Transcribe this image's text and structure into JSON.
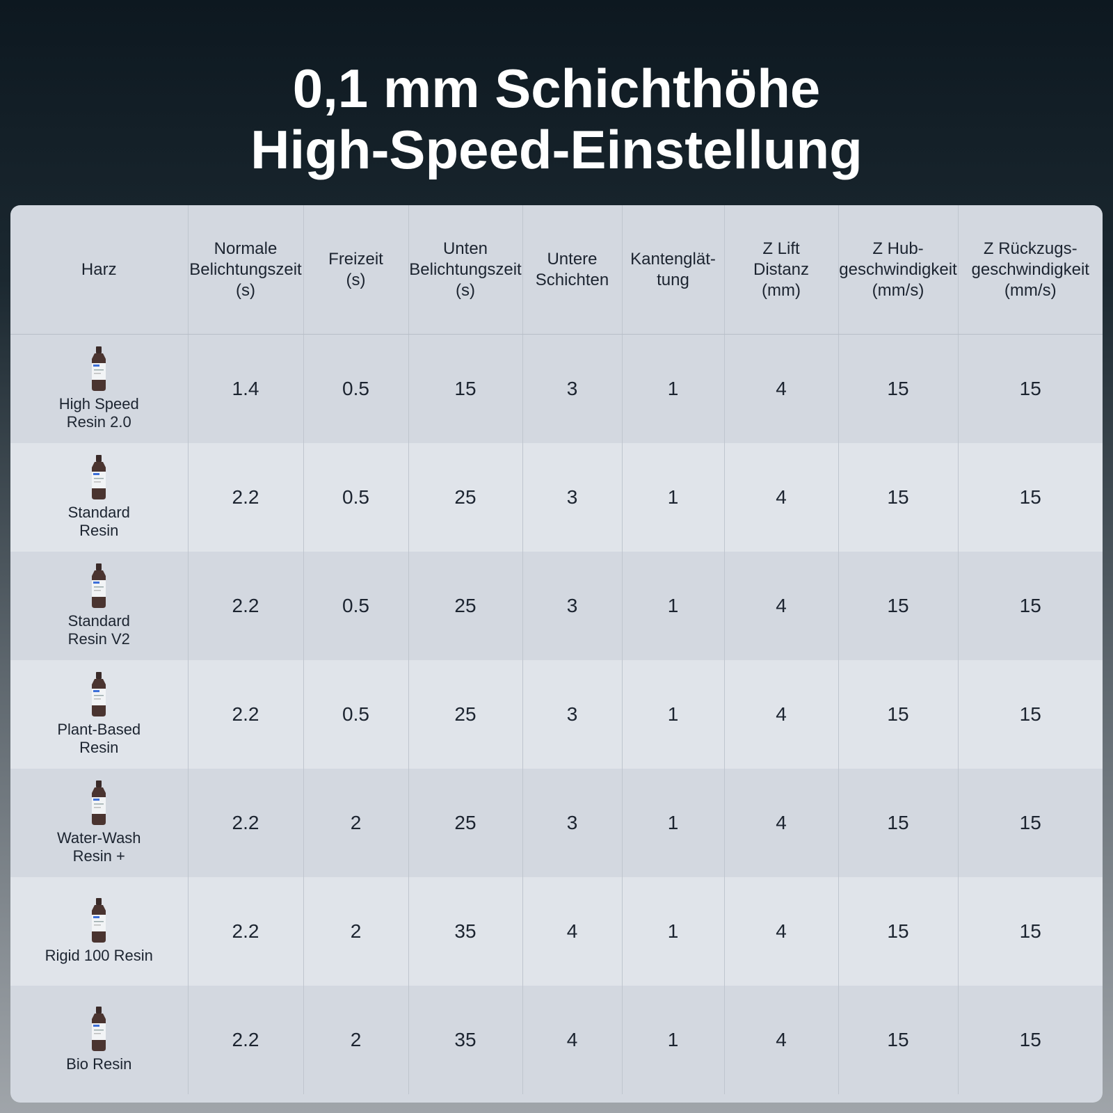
{
  "header": {
    "title_line1": "0,1 mm Schichthöhe",
    "title_line2": "High-Speed-Einstellung"
  },
  "table": {
    "columns": [
      "Harz",
      "Normale\nBelichtungszeit\n(s)",
      "Freizeit\n(s)",
      "Unten\nBelichtungszeit\n(s)",
      "Untere\nSchichten",
      "Kantenglät-\ntung",
      "Z Lift\nDistanz\n(mm)",
      "Z Hub-\ngeschwindigkeit\n(mm/s)",
      "Z Rückzugs-\ngeschwindigkeit\n(mm/s)"
    ],
    "rows": [
      [
        "High Speed\nResin 2.0",
        "1.4",
        "0.5",
        "15",
        "3",
        "1",
        "4",
        "15",
        "15"
      ],
      [
        "Standard\nResin",
        "2.2",
        "0.5",
        "25",
        "3",
        "1",
        "4",
        "15",
        "15"
      ],
      [
        "Standard\nResin V2",
        "2.2",
        "0.5",
        "25",
        "3",
        "1",
        "4",
        "15",
        "15"
      ],
      [
        "Plant-Based\nResin",
        "2.2",
        "0.5",
        "25",
        "3",
        "1",
        "4",
        "15",
        "15"
      ],
      [
        "Water-Wash\nResin +",
        "2.2",
        "2",
        "25",
        "3",
        "1",
        "4",
        "15",
        "15"
      ],
      [
        "Rigid 100 Resin",
        "2.2",
        "2",
        "35",
        "4",
        "1",
        "4",
        "15",
        "15"
      ],
      [
        "Bio Resin",
        "2.2",
        "2",
        "35",
        "4",
        "1",
        "4",
        "15",
        "15"
      ]
    ]
  }
}
